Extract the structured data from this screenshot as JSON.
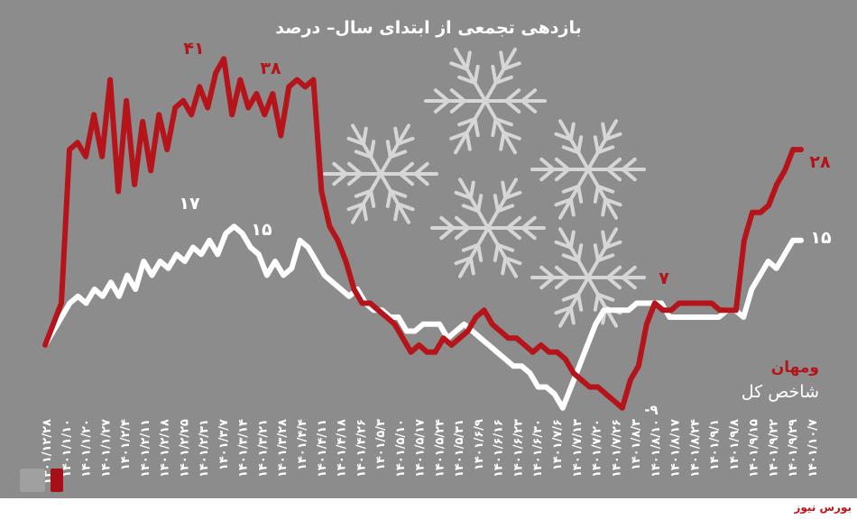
{
  "title": "بازدهی تجمعی از ابتدای سال– درصد",
  "brand": "بورس نیوز",
  "watermark": "بورس نیوز",
  "colors": {
    "background": "#8c8c8c",
    "series_red": "#b5141b",
    "series_white": "#ffffff",
    "snowflake": "#d6d6d6"
  },
  "chart_data": {
    "type": "line",
    "title": "بازدهی تجمعی از ابتدای سال– درصد",
    "xlabel": "",
    "ylabel": "",
    "ylim": [
      -12,
      48
    ],
    "grid": false,
    "legend_position": "bottom-right",
    "x_tick_labels": [
      "۱۴۰۱/۱۲/۲۸",
      "۱۴۰۱/۱/۱۰",
      "۱۴۰۱/۱/۲۰",
      "۱۴۰۱/۱/۲۷",
      "۱۴۰۱/۲/۴",
      "۱۴۰۱/۲/۱۱",
      "۱۴۰۱/۲/۱۸",
      "۱۴۰۱/۲/۲۵",
      "۱۴۰۱/۲/۳۱",
      "۱۴۰۱/۳/۷",
      "۱۴۰۱/۳/۱۴",
      "۱۴۰۱/۳/۲۱",
      "۱۴۰۱/۳/۲۸",
      "۱۴۰۱/۴/۴",
      "۱۴۰۱/۴/۱۱",
      "۱۴۰۱/۴/۱۸",
      "۱۴۰۱/۴/۲۶",
      "۱۴۰۱/۵/۳",
      "۱۴۰۱/۵/۱۰",
      "۱۴۰۱/۵/۱۷",
      "۱۴۰۱/۵/۲۴",
      "۱۴۰۱/۵/۳۱",
      "۱۴۰۱/۶/۹",
      "۱۴۰۱/۶/۱۶",
      "۱۴۰۱/۶/۲۳",
      "۱۴۰۱/۶/۳۰",
      "۱۴۰۱/۷/۶",
      "۱۴۰۱/۷/۱۳",
      "۱۴۰۱/۷/۲۰",
      "۱۴۰۱/۷/۲۶",
      "۱۴۰۱/۸/۳",
      "۱۴۰۱/۸/۱۰",
      "۱۴۰۱/۸/۱۷",
      "۱۴۰۱/۸/۲۴",
      "۱۴۰۱/۹/۱",
      "۱۴۰۱/۹/۸",
      "۱۴۰۱/۹/۱۵",
      "۱۴۰۱/۹/۲۲",
      "۱۴۰۱/۹/۲۹",
      "۱۴۰۱/۱۰/۷"
    ],
    "series": [
      {
        "name": "ومهان",
        "color": "#b5141b",
        "values": [
          0,
          3,
          6,
          28,
          29,
          27,
          33,
          27,
          38,
          22,
          35,
          23,
          32,
          25,
          33,
          28,
          34,
          35,
          33,
          37,
          34,
          39,
          41,
          33,
          38,
          34,
          36,
          33,
          36,
          30,
          37,
          38,
          37,
          38,
          22,
          17,
          15,
          12,
          8,
          6,
          6,
          5,
          4,
          3,
          1,
          -1,
          0,
          -1,
          -1,
          1,
          0,
          1,
          2,
          4,
          5,
          3,
          2,
          1,
          1,
          0,
          -1,
          0,
          -1,
          -1,
          -2,
          -4,
          -5,
          -6,
          -6,
          -7,
          -8,
          -9,
          -5,
          -3,
          3,
          6,
          5,
          5,
          6,
          6,
          6,
          6,
          6,
          5,
          5,
          5,
          15,
          19,
          19,
          20,
          23,
          25,
          28,
          28
        ]
      },
      {
        "name": "شاخص کل",
        "color": "#ffffff",
        "values": [
          0,
          2,
          4,
          6,
          7,
          6,
          8,
          7,
          9,
          7,
          10,
          8,
          12,
          10,
          12,
          11,
          13,
          12,
          14,
          13,
          15,
          13,
          16,
          17,
          16,
          14,
          13,
          10,
          12,
          10,
          11,
          15,
          14,
          12,
          10,
          9,
          8,
          7,
          8,
          6,
          5,
          5,
          4,
          4,
          2,
          2,
          3,
          3,
          3,
          1,
          2,
          3,
          2,
          1,
          0,
          -1,
          -2,
          -3,
          -3,
          -4,
          -6,
          -6,
          -7,
          -9,
          -6,
          -3,
          0,
          3,
          5,
          5,
          5,
          5,
          6,
          6,
          6,
          6,
          4,
          4,
          4,
          4,
          4,
          4,
          4,
          5,
          5,
          4,
          8,
          10,
          12,
          11,
          13,
          15,
          15
        ]
      }
    ],
    "annotations": [
      {
        "text": "۴۱",
        "series": 0
      },
      {
        "text": "۳۸",
        "series": 0
      },
      {
        "text": "۲۸",
        "series": 0
      },
      {
        "text": "۷",
        "series": 0
      },
      {
        "text": "۱۷",
        "series": 1
      },
      {
        "text": "۱۵",
        "series": 1
      },
      {
        "text": "-۹",
        "series": 1
      },
      {
        "text": "۱۵",
        "series": 1
      }
    ]
  }
}
